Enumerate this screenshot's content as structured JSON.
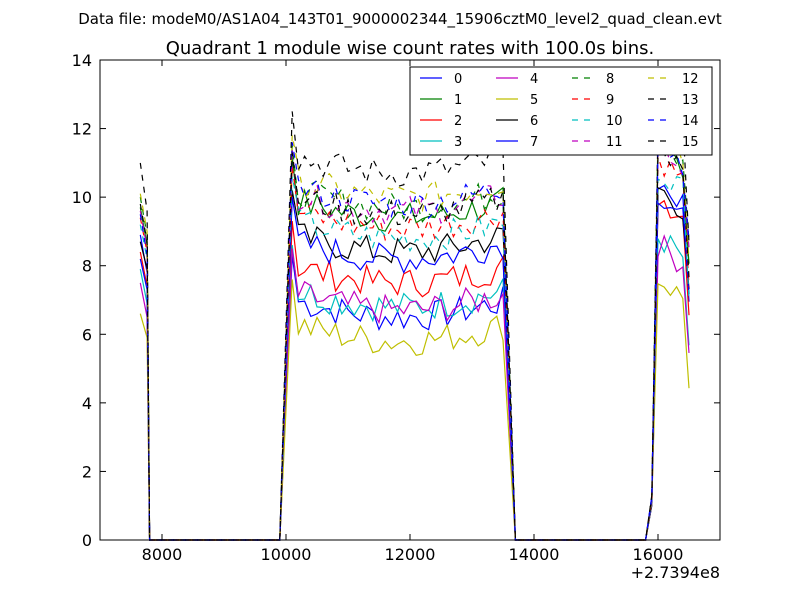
{
  "header": {
    "data_file": "Data file: modeM0/AS1A04_143T01_9000002344_15906cztM0_level2_quad_clean.evt"
  },
  "chart_data": {
    "type": "line",
    "title": "Quadrant 1 module wise count rates with 100.0s bins.",
    "xlabel": "",
    "ylabel": "",
    "x_offset_label": "+2.7394e8",
    "xlim": [
      7000,
      17000
    ],
    "ylim": [
      0,
      14
    ],
    "xticks": [
      8000,
      10000,
      12000,
      14000,
      16000
    ],
    "yticks": [
      0,
      2,
      4,
      6,
      8,
      10,
      12,
      14
    ],
    "grid": false,
    "legend_position": "top-right",
    "segments": [
      {
        "x0": 10100,
        "x1": 13500,
        "n": 35
      },
      {
        "x0": 15900,
        "x1": 16500,
        "n": 7
      }
    ],
    "series": [
      {
        "name": "0",
        "color": "#0000ff",
        "dash": "solid",
        "first": [
          8.9,
          7.8
        ],
        "level": 7.0,
        "seg2": 10.6
      },
      {
        "name": "1",
        "color": "#008000",
        "dash": "solid",
        "first": [
          9.7,
          8.6
        ],
        "level": 9.9,
        "seg2": 11.7
      },
      {
        "name": "2",
        "color": "#ff0000",
        "dash": "solid",
        "first": [
          8.4,
          7.4
        ],
        "level": 8.0,
        "seg2": 10.2
      },
      {
        "name": "3",
        "color": "#00bfbf",
        "dash": "solid",
        "first": [
          7.9,
          6.9
        ],
        "level": 7.3,
        "seg2": 9.0
      },
      {
        "name": "4",
        "color": "#bf00bf",
        "dash": "solid",
        "first": [
          7.5,
          6.5
        ],
        "level": 7.2,
        "seg2": 8.8
      },
      {
        "name": "5",
        "color": "#bfbf00",
        "dash": "solid",
        "first": [
          6.6,
          5.9
        ],
        "level": 6.3,
        "seg2": 7.8
      },
      {
        "name": "6",
        "color": "#000000",
        "dash": "solid",
        "first": [
          8.7,
          7.9
        ],
        "level": 8.9,
        "seg2": 10.4
      },
      {
        "name": "7",
        "color": "#0000ff",
        "dash": "solid",
        "first": [
          8.2,
          7.3
        ],
        "level": 8.7,
        "seg2": 10.3
      },
      {
        "name": "8",
        "color": "#008000",
        "dash": "dashed",
        "first": [
          10.0,
          8.9
        ],
        "level": 10.2,
        "seg2": 11.9
      },
      {
        "name": "9",
        "color": "#ff0000",
        "dash": "dashed",
        "first": [
          9.4,
          8.4
        ],
        "level": 9.6,
        "seg2": 11.3
      },
      {
        "name": "10",
        "color": "#00bfbf",
        "dash": "dashed",
        "first": [
          9.2,
          8.2
        ],
        "level": 9.3,
        "seg2": 11.0
      },
      {
        "name": "11",
        "color": "#bf00bf",
        "dash": "dashed",
        "first": [
          9.6,
          8.5
        ],
        "level": 10.1,
        "seg2": 11.6
      },
      {
        "name": "12",
        "color": "#bfbf00",
        "dash": "dashed",
        "first": [
          10.1,
          9.0
        ],
        "level": 10.5,
        "seg2": 12.0
      },
      {
        "name": "13",
        "color": "#000000",
        "dash": "dashed",
        "first": [
          11.0,
          9.6
        ],
        "level": 11.2,
        "seg2": 12.6
      },
      {
        "name": "14",
        "color": "#0000ff",
        "dash": "dashed",
        "first": [
          9.5,
          8.3
        ],
        "level": 10.3,
        "seg2": 11.8
      },
      {
        "name": "15",
        "color": "#000000",
        "dash": "dashed",
        "first": [
          9.8,
          8.7
        ],
        "level": 10.0,
        "seg2": 11.5
      }
    ]
  }
}
